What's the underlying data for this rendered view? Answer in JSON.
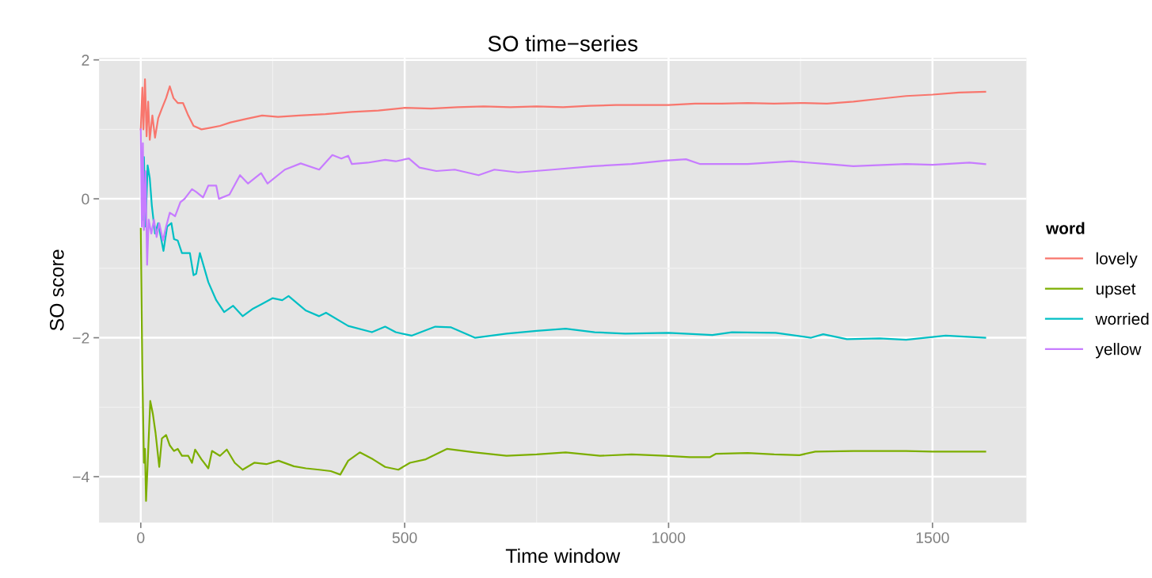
{
  "chart_data": {
    "type": "line",
    "title": "SO time−series",
    "xlabel": "Time window",
    "ylabel": "SO score",
    "legend_title": "word",
    "xlim": [
      -79,
      1678
    ],
    "ylim": [
      -4.66,
      2.03
    ],
    "xticks": [
      0,
      500,
      1000,
      1500
    ],
    "yticks": [
      {
        "value": -4,
        "label": "−4"
      },
      {
        "value": -2,
        "label": "−2"
      },
      0,
      2
    ],
    "grid": true,
    "legend": "right",
    "line_style": "solid",
    "marker": "none",
    "series": [
      {
        "name": "lovely",
        "color": "#f8766d",
        "x": [
          0,
          3,
          5,
          8,
          11,
          14,
          17,
          22,
          27,
          33,
          40,
          48,
          55,
          62,
          70,
          80,
          90,
          100,
          115,
          130,
          150,
          170,
          200,
          230,
          260,
          300,
          350,
          400,
          450,
          500,
          550,
          600,
          650,
          700,
          750,
          800,
          850,
          900,
          950,
          1000,
          1050,
          1100,
          1150,
          1200,
          1250,
          1300,
          1350,
          1400,
          1450,
          1500,
          1550,
          1600
        ],
        "values": [
          1.0,
          1.6,
          1.0,
          1.72,
          0.9,
          1.4,
          0.85,
          1.2,
          0.88,
          1.16,
          1.3,
          1.45,
          1.62,
          1.45,
          1.38,
          1.38,
          1.2,
          1.05,
          1.0,
          1.02,
          1.05,
          1.1,
          1.15,
          1.2,
          1.18,
          1.2,
          1.22,
          1.25,
          1.27,
          1.31,
          1.3,
          1.32,
          1.33,
          1.32,
          1.33,
          1.32,
          1.34,
          1.35,
          1.35,
          1.35,
          1.37,
          1.37,
          1.38,
          1.37,
          1.38,
          1.37,
          1.4,
          1.44,
          1.48,
          1.5,
          1.53,
          1.54
        ]
      },
      {
        "name": "upset",
        "color": "#7cae00",
        "x": [
          0,
          3,
          6,
          8,
          10,
          13,
          18,
          23,
          28,
          35,
          40,
          48,
          55,
          63,
          70,
          78,
          90,
          97,
          103,
          115,
          128,
          135,
          150,
          163,
          178,
          193,
          215,
          238,
          261,
          290,
          313,
          338,
          360,
          378,
          393,
          415,
          440,
          463,
          488,
          510,
          540,
          580,
          633,
          693,
          750,
          805,
          870,
          930,
          993,
          1040,
          1078,
          1090,
          1150,
          1200,
          1248,
          1278,
          1350,
          1450,
          1500,
          1600
        ],
        "values": [
          -0.43,
          -2.5,
          -3.8,
          -3.6,
          -4.35,
          -3.82,
          -2.91,
          -3.1,
          -3.37,
          -3.86,
          -3.45,
          -3.4,
          -3.55,
          -3.63,
          -3.6,
          -3.7,
          -3.7,
          -3.8,
          -3.61,
          -3.75,
          -3.88,
          -3.63,
          -3.7,
          -3.61,
          -3.8,
          -3.9,
          -3.8,
          -3.82,
          -3.77,
          -3.85,
          -3.88,
          -3.9,
          -3.92,
          -3.97,
          -3.77,
          -3.65,
          -3.75,
          -3.86,
          -3.9,
          -3.8,
          -3.75,
          -3.6,
          -3.65,
          -3.7,
          -3.68,
          -3.65,
          -3.7,
          -3.68,
          -3.7,
          -3.72,
          -3.72,
          -3.67,
          -3.66,
          -3.68,
          -3.69,
          -3.64,
          -3.63,
          -3.63,
          -3.64,
          -3.64
        ]
      },
      {
        "name": "worried",
        "color": "#00bfc4",
        "x": [
          3,
          6,
          9,
          13,
          17,
          21,
          27,
          33,
          38,
          43,
          50,
          58,
          63,
          70,
          78,
          93,
          100,
          105,
          112,
          128,
          143,
          158,
          175,
          193,
          213,
          228,
          250,
          268,
          280,
          313,
          338,
          351,
          393,
          438,
          463,
          483,
          513,
          558,
          588,
          633,
          693,
          750,
          805,
          860,
          918,
          1000,
          1083,
          1120,
          1203,
          1270,
          1293,
          1338,
          1400,
          1450,
          1525,
          1600
        ],
        "values": [
          -0.3,
          0.6,
          -0.4,
          0.48,
          0.3,
          -0.1,
          -0.5,
          -0.35,
          -0.55,
          -0.75,
          -0.4,
          -0.35,
          -0.58,
          -0.6,
          -0.78,
          -0.78,
          -1.1,
          -1.08,
          -0.78,
          -1.2,
          -1.46,
          -1.63,
          -1.54,
          -1.69,
          -1.58,
          -1.52,
          -1.43,
          -1.46,
          -1.4,
          -1.61,
          -1.69,
          -1.64,
          -1.83,
          -1.92,
          -1.84,
          -1.92,
          -1.97,
          -1.84,
          -1.85,
          -2.0,
          -1.94,
          -1.9,
          -1.87,
          -1.92,
          -1.94,
          -1.93,
          -1.96,
          -1.92,
          -1.93,
          -2.0,
          -1.95,
          -2.02,
          -2.01,
          -2.03,
          -1.97,
          -2.0
        ]
      },
      {
        "name": "yellow",
        "color": "#c77cff",
        "x": [
          0,
          2,
          4,
          6,
          9,
          12,
          15,
          20,
          25,
          30,
          35,
          42,
          48,
          55,
          65,
          75,
          83,
          97,
          105,
          118,
          128,
          143,
          148,
          168,
          188,
          203,
          228,
          240,
          273,
          303,
          338,
          363,
          380,
          393,
          400,
          430,
          463,
          483,
          508,
          528,
          560,
          595,
          640,
          670,
          715,
          780,
          858,
          930,
          993,
          1033,
          1060,
          1150,
          1233,
          1300,
          1350,
          1450,
          1500,
          1570,
          1600
        ],
        "values": [
          1.0,
          -0.4,
          0.8,
          -0.45,
          0.4,
          -0.95,
          -0.3,
          -0.5,
          -0.3,
          -0.55,
          -0.35,
          -0.6,
          -0.4,
          -0.2,
          -0.25,
          -0.05,
          0.0,
          0.14,
          0.1,
          0.02,
          0.19,
          0.19,
          0.0,
          0.06,
          0.34,
          0.22,
          0.37,
          0.22,
          0.42,
          0.51,
          0.42,
          0.63,
          0.58,
          0.62,
          0.5,
          0.52,
          0.56,
          0.54,
          0.58,
          0.45,
          0.4,
          0.42,
          0.34,
          0.42,
          0.38,
          0.42,
          0.47,
          0.5,
          0.55,
          0.57,
          0.5,
          0.5,
          0.54,
          0.5,
          0.47,
          0.5,
          0.49,
          0.52,
          0.5
        ]
      }
    ]
  }
}
